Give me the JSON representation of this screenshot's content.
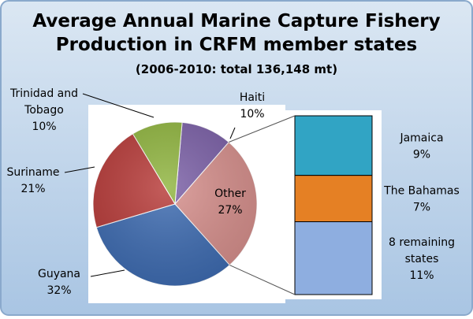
{
  "chart_data": {
    "type": "pie",
    "title_line1": "Average Annual Marine Capture Fishery",
    "title_line2": "Production  in CRFM member states",
    "subtitle": "(2006-2010: total 136,148 mt)",
    "pie": {
      "slices": [
        {
          "key": "haiti",
          "label_lines": [
            "Haiti"
          ],
          "value_label": "10%",
          "value": 10,
          "color": "#7a5fa6"
        },
        {
          "key": "other",
          "label_lines": [
            "Other"
          ],
          "value_label": "27%",
          "value": 27,
          "color": "#d68f8c"
        },
        {
          "key": "guyana",
          "label_lines": [
            "Guyana"
          ],
          "value_label": "32%",
          "value": 32,
          "color": "#3d6bb1"
        },
        {
          "key": "suriname",
          "label_lines": [
            "Suriname"
          ],
          "value_label": "21%",
          "value": 21,
          "color": "#b73a38"
        },
        {
          "key": "trinidad",
          "label_lines": [
            "Trinidad and",
            "Tobago"
          ],
          "value_label": "10%",
          "value": 10,
          "color": "#8fb43e"
        }
      ]
    },
    "breakdown": {
      "of": "Other",
      "segments": [
        {
          "key": "jamaica",
          "label_lines": [
            "Jamaica"
          ],
          "value_label": "9%",
          "value": 9,
          "color": "#31a4c4"
        },
        {
          "key": "bahamas",
          "label_lines": [
            "The Bahamas"
          ],
          "value_label": "7%",
          "value": 7,
          "color": "#e58024"
        },
        {
          "key": "remaining",
          "label_lines": [
            "8 remaining",
            "states"
          ],
          "value_label": "11%",
          "value": 11,
          "color": "#8eaee0"
        }
      ]
    },
    "colors": {
      "background_top": "#dbe7f3",
      "background_bottom": "#a9c5e3",
      "border": "#8aa9cc"
    }
  }
}
